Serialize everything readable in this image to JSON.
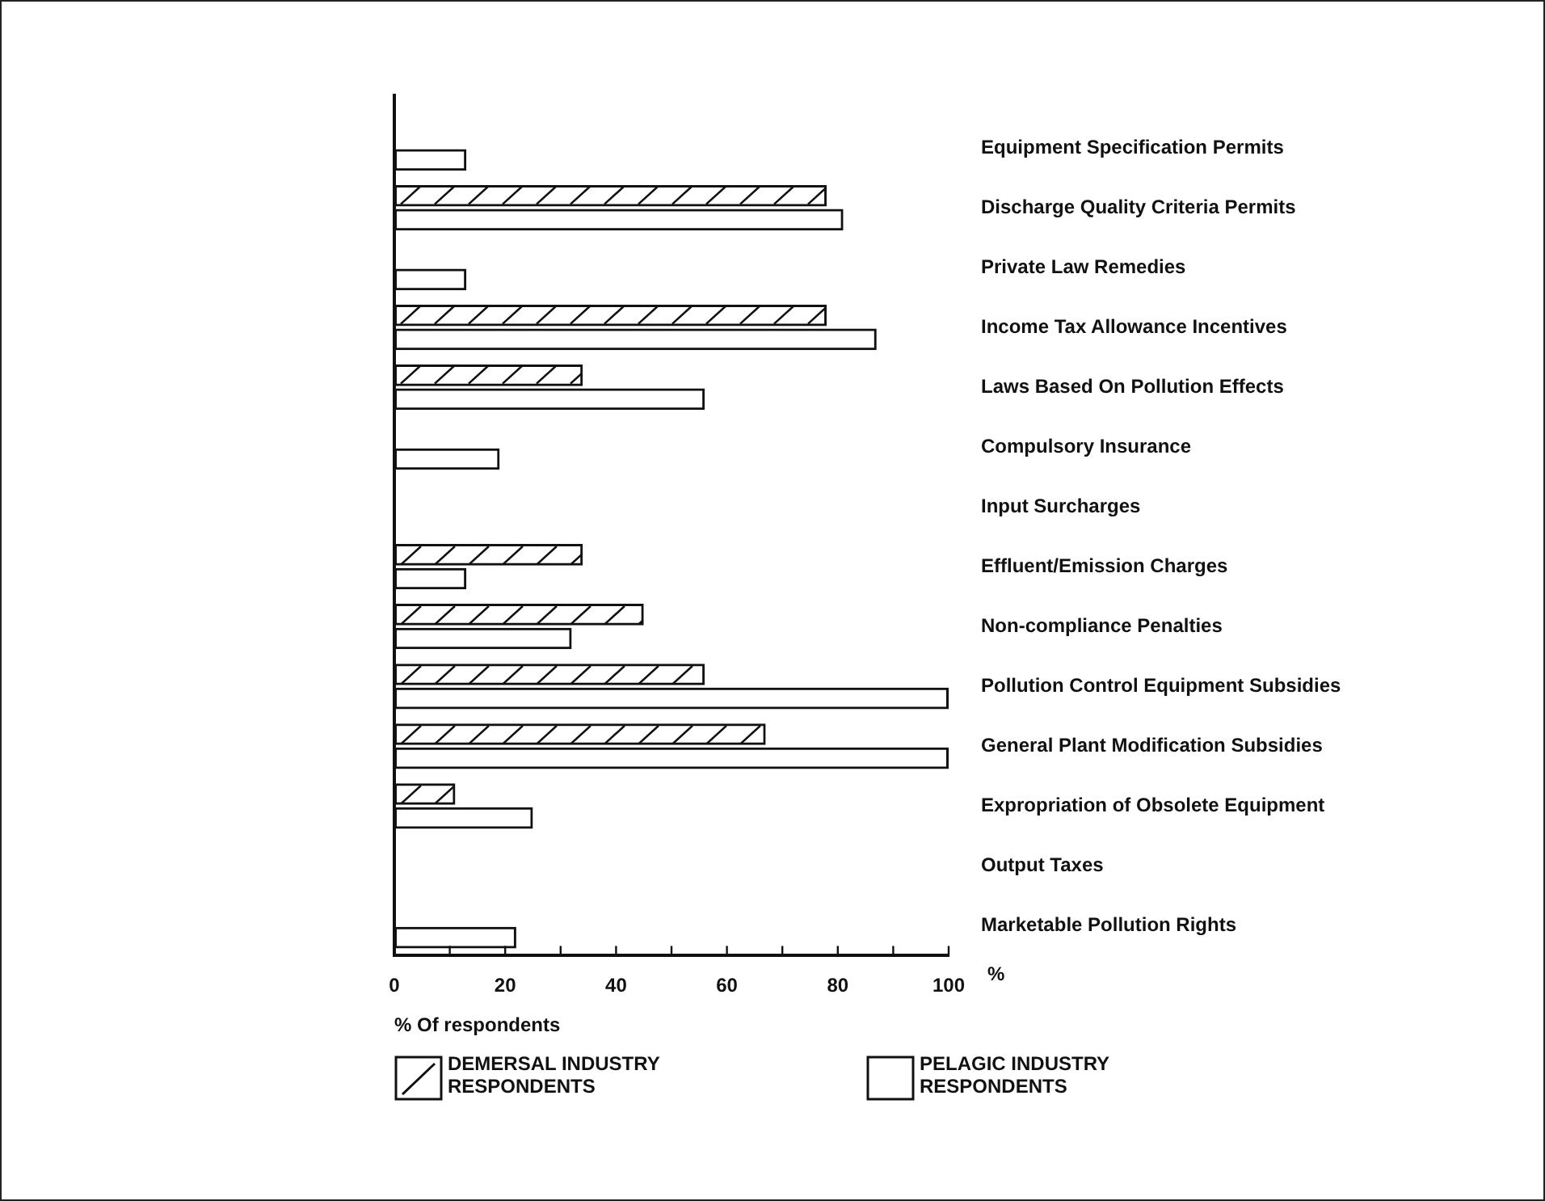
{
  "chart_data": {
    "type": "bar",
    "orientation": "horizontal",
    "xlabel": "% Of respondents",
    "annotations": [
      "%"
    ],
    "categories": [
      "Equipment Specification Permits",
      "Discharge Quality Criteria Permits",
      "Private Law Remedies",
      "Income Tax Allowance Incentives",
      "Laws Based On Pollution Effects",
      "Compulsory Insurance",
      "Input Surcharges",
      "Effluent/Emission Charges",
      "Non-compliance Penalties",
      "Pollution Control Equipment Subsidies",
      "General Plant Modification Subsidies",
      "Expropriation of Obsolete Equipment",
      "Output Taxes",
      "Marketable Pollution Rights"
    ],
    "series": [
      {
        "name": "DEMERSAL INDUSTRY RESPONDENTS",
        "color": "#111111",
        "values": [
          0,
          78,
          0,
          78,
          34,
          0,
          0,
          34,
          45,
          56,
          67,
          11,
          0,
          0
        ]
      },
      {
        "name": "PELAGIC INDUSTRY RESPONDENTS",
        "color": "#111111",
        "values": [
          13,
          81,
          13,
          87,
          56,
          19,
          0,
          13,
          32,
          100,
          100,
          25,
          0,
          22
        ]
      }
    ],
    "xlim": [
      0,
      100
    ],
    "xticks": [
      0,
      {
        "value": 10,
        "label": null
      },
      20,
      {
        "value": 30,
        "label": null
      },
      40,
      {
        "value": 50,
        "label": null
      },
      60,
      {
        "value": 70,
        "label": null
      },
      80,
      {
        "value": 90,
        "label": null
      },
      100
    ],
    "legend": "bottom"
  }
}
